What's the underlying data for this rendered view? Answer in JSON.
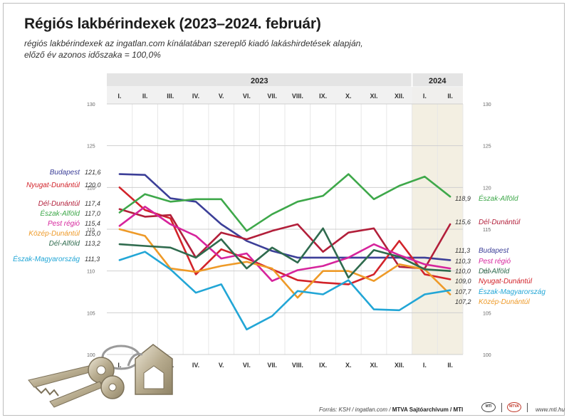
{
  "title": "Régiós lakbérindexek (2023–2024. február)",
  "subtitle": [
    "régiós lakbérindexek az ingatlan.com kínálatában szereplő kiadó lakáshirdetések alapján,",
    "előző év azonos időszaka = 100,0%"
  ],
  "footer": {
    "source": "Forrás: KSH / ingatlan.com / ",
    "credit": "MTVA Sajtóarchívum / MTI",
    "logo1": "MTI",
    "logo2": "MTVA",
    "site": "www.mti.hu"
  },
  "chart_data": {
    "type": "line",
    "years": [
      {
        "label": "2023",
        "span": [
          0,
          11
        ]
      },
      {
        "label": "2024",
        "span": [
          12,
          13
        ]
      }
    ],
    "categories": [
      "I.",
      "II.",
      "III.",
      "IV.",
      "V.",
      "VI.",
      "VII.",
      "VIII.",
      "IX.",
      "X.",
      "XI.",
      "XII.",
      "I.",
      "II."
    ],
    "ylim": [
      100,
      130
    ],
    "yticks": [
      100,
      105,
      110,
      115,
      120,
      125,
      130
    ],
    "highlight_from_index": 12,
    "grid": true,
    "series": [
      {
        "name": "Budapest",
        "color": "#3c3f98",
        "start_label": "121,6",
        "end_label": "111,3",
        "values": [
          121.6,
          121.5,
          118.7,
          118.3,
          115.6,
          113.6,
          112.4,
          111.6,
          111.6,
          111.6,
          111.6,
          111.6,
          111.6,
          111.3
        ]
      },
      {
        "name": "Nyugat-Dunántúl",
        "color": "#d2232a",
        "start_label": "120,0",
        "end_label": "109,0",
        "values": [
          120.0,
          117.3,
          116.3,
          109.6,
          112.6,
          111.5,
          110.2,
          108.9,
          108.6,
          108.4,
          109.6,
          113.6,
          109.6,
          109.0
        ]
      },
      {
        "name": "Dél-Dunántúl",
        "color": "#b21f3a",
        "start_label": "117,4",
        "end_label": "115,6",
        "values": [
          117.4,
          116.5,
          116.7,
          111.6,
          114.6,
          113.8,
          114.8,
          115.6,
          112.3,
          114.6,
          115.1,
          110.5,
          110.3,
          115.6
        ]
      },
      {
        "name": "Észak-Alföld",
        "color": "#3ea84a",
        "start_label": "117,0",
        "end_label": "118,9",
        "values": [
          117.0,
          119.2,
          118.3,
          118.6,
          118.6,
          114.8,
          116.8,
          118.3,
          119.0,
          121.6,
          118.6,
          120.2,
          121.3,
          118.9
        ]
      },
      {
        "name": "Pest régió",
        "color": "#d6249c",
        "start_label": "115,4",
        "end_label": "110,3",
        "values": [
          115.4,
          117.7,
          115.6,
          114.2,
          111.5,
          112.1,
          108.8,
          110.1,
          110.6,
          111.6,
          113.2,
          111.9,
          110.8,
          110.3
        ]
      },
      {
        "name": "Közép-Dunántúl",
        "color": "#ee9a28",
        "start_label": "115,0",
        "end_label": "107,2",
        "values": [
          115.0,
          114.2,
          110.3,
          109.9,
          110.6,
          111.1,
          110.3,
          106.8,
          110.0,
          110.0,
          108.8,
          110.8,
          110.2,
          107.2
        ]
      },
      {
        "name": "Dél-Alföld",
        "color": "#2f6b4e",
        "start_label": "113,2",
        "end_label": "110,0",
        "values": [
          113.2,
          113.0,
          112.8,
          111.6,
          113.8,
          110.3,
          112.8,
          111.0,
          115.1,
          109.2,
          112.5,
          111.7,
          110.2,
          110.0
        ]
      },
      {
        "name": "Észak-Magyarország",
        "color": "#22a6d6",
        "start_label": "111,3",
        "end_label": "107,7",
        "values": [
          111.3,
          112.3,
          110.2,
          107.4,
          108.4,
          103.0,
          104.6,
          107.6,
          107.2,
          108.9,
          105.4,
          105.3,
          107.2,
          107.7
        ]
      }
    ],
    "right_label_order": [
      "Észak-Alföld",
      "Dél-Dunántúl",
      "Budapest",
      "Pest régió",
      "Dél-Alföld",
      "Nyugat-Dunántúl",
      "Észak-Magyarország",
      "Közép-Dunántúl"
    ]
  }
}
